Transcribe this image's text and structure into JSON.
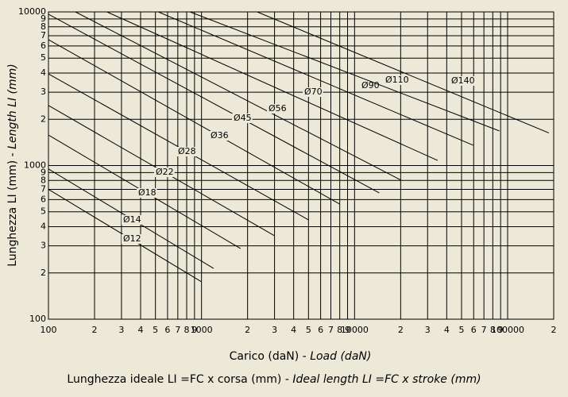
{
  "chart_data": {
    "type": "line",
    "x_label": [
      "Carico (daN) - ",
      "Load (daN)"
    ],
    "y_label": [
      "Lunghezza LI (mm) - ",
      "Length LI (mm)"
    ],
    "caption": [
      "Lunghezza ideale LI =FC x corsa (mm) - ",
      "Ideal length LI =FC x stroke (mm)"
    ],
    "log_x": true,
    "log_y": true,
    "grid": true,
    "xlim": [
      100,
      200000
    ],
    "ylim": [
      100,
      10000
    ],
    "xticks": [
      100,
      {
        "value": 200,
        "label": "2"
      },
      {
        "value": 300,
        "label": "3"
      },
      {
        "value": 400,
        "label": "4"
      },
      {
        "value": 500,
        "label": "5"
      },
      {
        "value": 600,
        "label": "6"
      },
      {
        "value": 700,
        "label": "7"
      },
      {
        "value": 800,
        "label": "8"
      },
      {
        "value": 900,
        "label": "9"
      },
      1000,
      {
        "value": 2000,
        "label": "2"
      },
      {
        "value": 3000,
        "label": "3"
      },
      {
        "value": 4000,
        "label": "4"
      },
      {
        "value": 5000,
        "label": "5"
      },
      {
        "value": 6000,
        "label": "6"
      },
      {
        "value": 7000,
        "label": "7"
      },
      {
        "value": 8000,
        "label": "8"
      },
      {
        "value": 9000,
        "label": "9"
      },
      10000,
      {
        "value": 20000,
        "label": "2"
      },
      {
        "value": 30000,
        "label": "3"
      },
      {
        "value": 40000,
        "label": "4"
      },
      {
        "value": 50000,
        "label": "5"
      },
      {
        "value": 60000,
        "label": "6"
      },
      {
        "value": 70000,
        "label": "7"
      },
      {
        "value": 80000,
        "label": "8"
      },
      {
        "value": 90000,
        "label": "9"
      },
      100000,
      {
        "value": 200000,
        "label": "2"
      }
    ],
    "yticks": [
      100,
      {
        "value": 200,
        "label": "2"
      },
      {
        "value": 300,
        "label": "3"
      },
      {
        "value": 400,
        "label": "4"
      },
      {
        "value": 500,
        "label": "5"
      },
      {
        "value": 600,
        "label": "6"
      },
      {
        "value": 700,
        "label": "7"
      },
      {
        "value": 800,
        "label": "8"
      },
      {
        "value": 900,
        "label": "9"
      },
      1000,
      {
        "value": 2000,
        "label": "2"
      },
      {
        "value": 3000,
        "label": "3"
      },
      {
        "value": 4000,
        "label": "4"
      },
      {
        "value": 5000,
        "label": "5"
      },
      {
        "value": 6000,
        "label": "6"
      },
      {
        "value": 7000,
        "label": "7"
      },
      {
        "value": 8000,
        "label": "8"
      },
      {
        "value": 9000,
        "label": "9"
      },
      10000
    ],
    "color": "#000000",
    "series": [
      {
        "name": "Ø12",
        "x": [
          100,
          1000
        ],
        "values": [
          700,
          175
        ]
      },
      {
        "name": "Ø14",
        "x": [
          100,
          1200
        ],
        "values": [
          950,
          214
        ]
      },
      {
        "name": "Ø18",
        "x": [
          100,
          1800
        ],
        "values": [
          1580,
          288
        ]
      },
      {
        "name": "Ø22",
        "x": [
          100,
          3000
        ],
        "values": [
          2460,
          349
        ]
      },
      {
        "name": "Ø28",
        "x": [
          100,
          5000
        ],
        "values": [
          3950,
          443
        ]
      },
      {
        "name": "Ø36",
        "x": [
          100,
          8000
        ],
        "values": [
          6600,
          561
        ]
      },
      {
        "name": "Ø45",
        "x": [
          100,
          14500
        ],
        "values": [
          9650,
          664
        ]
      },
      {
        "name": "Ø56",
        "x": [
          150,
          20200
        ],
        "values": [
          10000,
          802
        ]
      },
      {
        "name": "Ø70",
        "x": [
          241,
          34900
        ],
        "values": [
          10000,
          1080
        ]
      },
      {
        "name": "Ø90",
        "x": [
          522,
          59600
        ],
        "values": [
          10000,
          1355
        ]
      },
      {
        "name": "Ø110",
        "x": [
          841,
          88300
        ],
        "values": [
          10000,
          1680
        ]
      },
      {
        "name": "Ø140",
        "x": [
          2310,
          186000
        ],
        "values": [
          10000,
          1630
        ]
      }
    ]
  }
}
